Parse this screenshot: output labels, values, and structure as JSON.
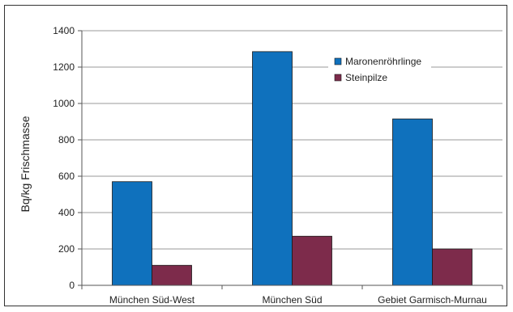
{
  "chart_data": {
    "type": "bar",
    "title": "",
    "xlabel": "",
    "ylabel": "Bq/kg Frischmasse",
    "ylim": [
      0,
      1400
    ],
    "yticks": [
      0,
      200,
      400,
      600,
      800,
      1000,
      1200,
      1400
    ],
    "grid": "horizontal",
    "legend_position": "top-right",
    "categories": [
      "München Süd-West",
      "München Süd",
      "Gebiet Garmisch-Murnau"
    ],
    "series": [
      {
        "name": "Maronenröhrlinge",
        "color": "#0f71bd",
        "values": [
          570,
          1285,
          915
        ]
      },
      {
        "name": "Steinpilze",
        "color": "#7d2b4b",
        "values": [
          110,
          270,
          200
        ]
      }
    ],
    "colors": {
      "grid": "#9a9a9a",
      "axis": "#555555",
      "bar_stroke": "#1a1a1a"
    }
  }
}
